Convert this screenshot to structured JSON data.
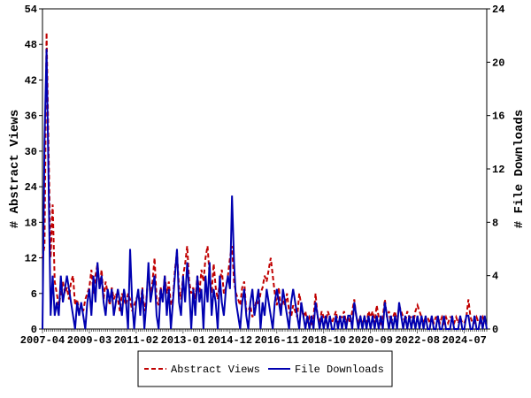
{
  "chart_data": {
    "type": "line",
    "y_label": "# Abstract Views",
    "y2_label": "# File Downloads",
    "categories": [
      "2007-04",
      null,
      null,
      null,
      null,
      null,
      null,
      null,
      null,
      null,
      null,
      null,
      null,
      null,
      null,
      null,
      null,
      null,
      null,
      null,
      null,
      null,
      null,
      "2009-03",
      null,
      null,
      null,
      null,
      null,
      null,
      null,
      null,
      null,
      null,
      null,
      null,
      null,
      null,
      null,
      null,
      null,
      null,
      null,
      null,
      null,
      null,
      "2011-02",
      null,
      null,
      null,
      null,
      null,
      null,
      null,
      null,
      null,
      null,
      null,
      null,
      null,
      null,
      null,
      null,
      null,
      null,
      null,
      null,
      null,
      null,
      "2013-01",
      null,
      null,
      null,
      null,
      null,
      null,
      null,
      null,
      null,
      null,
      null,
      null,
      null,
      null,
      null,
      null,
      null,
      null,
      null,
      null,
      null,
      null,
      "2014-12",
      null,
      null,
      null,
      null,
      null,
      null,
      null,
      null,
      null,
      null,
      null,
      null,
      null,
      null,
      null,
      null,
      null,
      null,
      null,
      null,
      null,
      null,
      "2016-11",
      null,
      null,
      null,
      null,
      null,
      null,
      null,
      null,
      null,
      null,
      null,
      null,
      null,
      null,
      null,
      null,
      null,
      null,
      null,
      null,
      null,
      null,
      "2018-10",
      null,
      null,
      null,
      null,
      null,
      null,
      null,
      null,
      null,
      null,
      null,
      null,
      null,
      null,
      null,
      null,
      null,
      null,
      null,
      null,
      null,
      null,
      "2020-09",
      null,
      null,
      null,
      null,
      null,
      null,
      null,
      null,
      null,
      null,
      null,
      null,
      null,
      null,
      null,
      null,
      null,
      null,
      null,
      null,
      null,
      null,
      "2022-08",
      null,
      null,
      null,
      null,
      null,
      null,
      null,
      null,
      null,
      null,
      null,
      null,
      null,
      null,
      null,
      null,
      null,
      null,
      null,
      null,
      null,
      null,
      "2024-07",
      null,
      null,
      null,
      null,
      null,
      null,
      null,
      null,
      null,
      null,
      null
    ],
    "series": [
      {
        "name": "Abstract Views",
        "color": "#c00000",
        "style": "dashed",
        "axis": "y",
        "values": [
          12,
          14,
          50,
          30,
          12,
          21,
          8,
          6,
          4,
          6,
          8,
          6,
          7,
          5,
          8,
          9,
          4,
          5,
          3,
          4,
          3,
          5,
          6,
          7,
          10,
          6,
          9,
          11,
          7,
          10,
          5,
          8,
          6,
          4,
          7,
          5,
          6,
          5,
          3,
          6,
          5,
          4,
          6,
          5,
          3,
          4,
          5,
          6,
          4,
          7,
          3,
          5,
          10,
          6,
          8,
          12,
          5,
          4,
          7,
          5,
          9,
          6,
          8,
          4,
          5,
          10,
          13,
          7,
          5,
          9,
          11,
          14,
          8,
          6,
          7,
          5,
          9,
          6,
          10,
          8,
          12,
          14,
          9,
          6,
          11,
          7,
          5,
          8,
          10,
          6,
          7,
          9,
          12,
          14,
          8,
          6,
          5,
          4,
          7,
          8,
          3,
          3,
          4,
          2,
          3,
          5,
          4,
          6,
          7,
          9,
          8,
          10,
          12,
          9,
          6,
          4,
          7,
          3,
          5,
          4,
          6,
          3,
          2,
          4,
          3,
          2,
          6,
          4,
          2,
          3,
          1,
          2,
          1,
          2,
          6,
          2,
          1,
          3,
          2,
          1,
          3,
          2,
          1,
          2,
          3,
          1,
          2,
          2,
          3,
          1,
          2,
          1,
          3,
          5,
          2,
          1,
          2,
          1,
          2,
          1,
          3,
          2,
          3,
          1,
          4,
          2,
          1,
          2,
          5,
          2,
          3,
          1,
          2,
          3,
          1,
          4,
          3,
          2,
          1,
          3,
          2,
          2,
          1,
          3,
          4,
          3,
          2,
          1,
          2,
          2,
          1,
          2,
          1,
          2,
          2,
          1,
          2,
          1,
          2,
          1,
          2,
          2,
          1,
          2,
          1,
          2,
          1,
          1,
          2,
          5,
          2,
          1,
          1,
          2,
          1,
          1,
          2,
          1,
          1
        ]
      },
      {
        "name": "File Downloads",
        "color": "#0000b0",
        "style": "solid",
        "axis": "y2",
        "values": [
          0,
          14,
          21,
          11,
          1,
          4,
          1,
          2,
          1,
          4,
          2,
          3,
          4,
          3,
          2,
          1,
          0,
          2,
          1,
          2,
          1,
          0,
          2,
          3,
          1,
          4,
          2,
          5,
          3,
          4,
          2,
          1,
          3,
          2,
          3,
          1,
          2,
          3,
          2,
          1,
          3,
          2,
          0,
          6,
          2,
          0,
          2,
          3,
          1,
          3,
          0,
          2,
          5,
          2,
          3,
          4,
          1,
          0,
          3,
          2,
          4,
          1,
          3,
          0,
          2,
          4,
          6,
          2,
          1,
          4,
          2,
          5,
          3,
          0,
          3,
          1,
          4,
          2,
          3,
          0,
          4,
          2,
          5,
          1,
          3,
          2,
          0,
          4,
          2,
          1,
          3,
          4,
          3,
          10,
          5,
          2,
          1,
          0,
          2,
          3,
          1,
          0,
          2,
          3,
          1,
          2,
          3,
          0,
          2,
          1,
          3,
          2,
          1,
          0,
          2,
          3,
          2,
          1,
          3,
          2,
          1,
          0,
          2,
          3,
          2,
          1,
          0,
          2,
          1,
          0,
          1,
          0,
          1,
          0,
          2,
          1,
          0,
          1,
          0,
          1,
          0,
          1,
          0,
          0,
          1,
          0,
          1,
          0,
          1,
          0,
          1,
          1,
          0,
          2,
          1,
          0,
          1,
          0,
          1,
          0,
          1,
          0,
          1,
          0,
          1,
          0,
          1,
          0,
          2,
          1,
          0,
          1,
          0,
          1,
          0,
          2,
          1,
          0,
          1,
          0,
          1,
          0,
          1,
          0,
          1,
          0,
          1,
          0,
          1,
          0,
          0,
          1,
          0,
          0,
          1,
          0,
          0,
          1,
          0,
          0,
          0,
          1,
          0,
          0,
          0,
          1,
          0,
          0,
          1,
          1,
          0,
          0,
          1,
          0,
          0,
          1,
          0,
          1,
          0
        ]
      }
    ],
    "ylim": [
      0,
      54
    ],
    "yticks": [
      0,
      6,
      12,
      18,
      24,
      30,
      36,
      42,
      48,
      54
    ],
    "y2lim": [
      0,
      24
    ],
    "y2ticks": [
      0,
      4,
      8,
      12,
      16,
      20,
      24
    ],
    "legend": "bottom"
  }
}
